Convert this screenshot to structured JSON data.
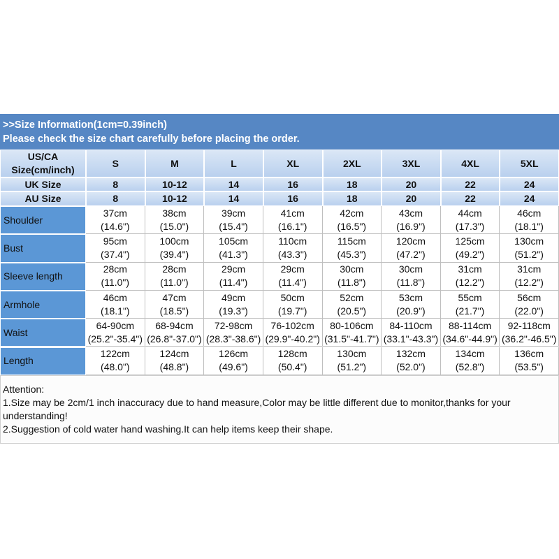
{
  "header": {
    "line1": ">>Size Information(1cm=0.39inch)",
    "line2": "Please check the size chart carefully before placing the order."
  },
  "table": {
    "size_label": [
      "US/CA",
      "Size(cm/inch)"
    ],
    "sizes": [
      "S",
      "M",
      "L",
      "XL",
      "2XL",
      "3XL",
      "4XL",
      "5XL"
    ],
    "uk": {
      "label": "UK Size",
      "values": [
        "8",
        "10-12",
        "14",
        "16",
        "18",
        "20",
        "22",
        "24"
      ]
    },
    "au": {
      "label": "AU Size",
      "values": [
        "8",
        "10-12",
        "14",
        "16",
        "18",
        "20",
        "22",
        "24"
      ]
    },
    "rows": [
      {
        "label": "Shoulder",
        "cells": [
          [
            "37cm",
            "(14.6\")"
          ],
          [
            "38cm",
            "(15.0\")"
          ],
          [
            "39cm",
            "(15.4\")"
          ],
          [
            "41cm",
            "(16.1\")"
          ],
          [
            "42cm",
            "(16.5\")"
          ],
          [
            "43cm",
            "(16.9\")"
          ],
          [
            "44cm",
            "(17.3\")"
          ],
          [
            "46cm",
            "(18.1\")"
          ]
        ]
      },
      {
        "label": "Bust",
        "cells": [
          [
            "95cm",
            "(37.4\")"
          ],
          [
            "100cm",
            "(39.4\")"
          ],
          [
            "105cm",
            "(41.3\")"
          ],
          [
            "110cm",
            "(43.3\")"
          ],
          [
            "115cm",
            "(45.3\")"
          ],
          [
            "120cm",
            "(47.2\")"
          ],
          [
            "125cm",
            "(49.2\")"
          ],
          [
            "130cm",
            "(51.2\")"
          ]
        ]
      },
      {
        "label": "Sleeve length",
        "cells": [
          [
            "28cm",
            "(11.0\")"
          ],
          [
            "28cm",
            "(11.0\")"
          ],
          [
            "29cm",
            "(11.4\")"
          ],
          [
            "29cm",
            "(11.4\")"
          ],
          [
            "30cm",
            "(11.8\")"
          ],
          [
            "30cm",
            "(11.8\")"
          ],
          [
            "31cm",
            "(12.2\")"
          ],
          [
            "31cm",
            "(12.2\")"
          ]
        ]
      },
      {
        "label": "Armhole",
        "cells": [
          [
            "46cm",
            "(18.1\")"
          ],
          [
            "47cm",
            "(18.5\")"
          ],
          [
            "49cm",
            "(19.3\")"
          ],
          [
            "50cm",
            "(19.7\")"
          ],
          [
            "52cm",
            "(20.5\")"
          ],
          [
            "53cm",
            "(20.9\")"
          ],
          [
            "55cm",
            "(21.7\")"
          ],
          [
            "56cm",
            "(22.0\")"
          ]
        ]
      },
      {
        "label": "Waist",
        "cells": [
          [
            "64-90cm",
            "(25.2\"-35.4\")"
          ],
          [
            "68-94cm",
            "(26.8\"-37.0\")"
          ],
          [
            "72-98cm",
            "(28.3\"-38.6\")"
          ],
          [
            "76-102cm",
            "(29.9\"-40.2\")"
          ],
          [
            "80-106cm",
            "(31.5\"-41.7\")"
          ],
          [
            "84-110cm",
            "(33.1\"-43.3\")"
          ],
          [
            "88-114cm",
            "(34.6\"-44.9\")"
          ],
          [
            "92-118cm",
            "(36.2\"-46.5\")"
          ]
        ]
      },
      {
        "label": "Length",
        "cells": [
          [
            "122cm",
            "(48.0\")"
          ],
          [
            "124cm",
            "(48.8\")"
          ],
          [
            "126cm",
            "(49.6\")"
          ],
          [
            "128cm",
            "(50.4\")"
          ],
          [
            "130cm",
            "(51.2\")"
          ],
          [
            "132cm",
            "(52.0\")"
          ],
          [
            "134cm",
            "(52.8\")"
          ],
          [
            "136cm",
            "(53.5\")"
          ]
        ]
      }
    ]
  },
  "notes": [
    "Attention:",
    "1.Size may be 2cm/1 inch inaccuracy due to hand measure,Color may be little different due to monitor,thanks for your",
    "understanding!",
    "2.Suggestion of cold water hand washing.It can help items keep their shape."
  ]
}
